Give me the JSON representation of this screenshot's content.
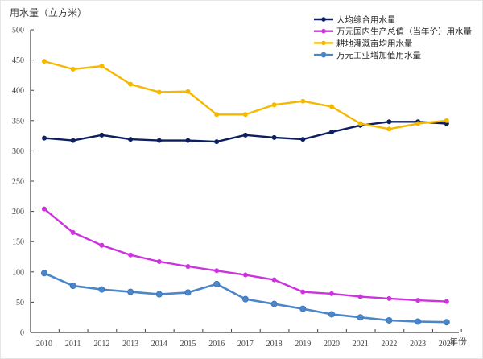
{
  "chart_data": {
    "type": "line",
    "title": "",
    "ylabel": "用水量（立方米）",
    "xlabel": "年份",
    "ylim": [
      0,
      500
    ],
    "yticks": [
      0,
      50,
      100,
      150,
      200,
      250,
      300,
      350,
      400,
      450,
      500
    ],
    "x": [
      "2010",
      "2011",
      "2012",
      "2013",
      "2014",
      "2015",
      "2016",
      "2017",
      "2018",
      "2019",
      "2020",
      "2021",
      "2022",
      "2023",
      "2024"
    ],
    "grid": false,
    "legend_position": "top-right",
    "series": [
      {
        "name": "人均综合用水量",
        "color": "#0d1f5c",
        "marker": "diamond",
        "values": [
          321,
          317,
          326,
          319,
          317,
          317,
          315,
          326,
          322,
          319,
          331,
          342,
          348,
          348,
          345
        ]
      },
      {
        "name": "万元国内生产总值（当年价）用水量",
        "color": "#cc33dd",
        "marker": "circle-small",
        "values": [
          204,
          165,
          144,
          128,
          117,
          109,
          102,
          95,
          87,
          67,
          64,
          59,
          56,
          53,
          51
        ]
      },
      {
        "name": "耕地灌溉亩均用水量",
        "color": "#f5b800",
        "marker": "circle-small",
        "values": [
          448,
          435,
          440,
          410,
          397,
          398,
          360,
          360,
          376,
          382,
          373,
          345,
          336,
          345,
          350
        ]
      },
      {
        "name": "万元工业增加值用水量",
        "color": "#4a86c8",
        "marker": "circle",
        "values": [
          98,
          77,
          71,
          67,
          63,
          66,
          80,
          55,
          47,
          39,
          30,
          25,
          20,
          18,
          17
        ]
      }
    ]
  }
}
